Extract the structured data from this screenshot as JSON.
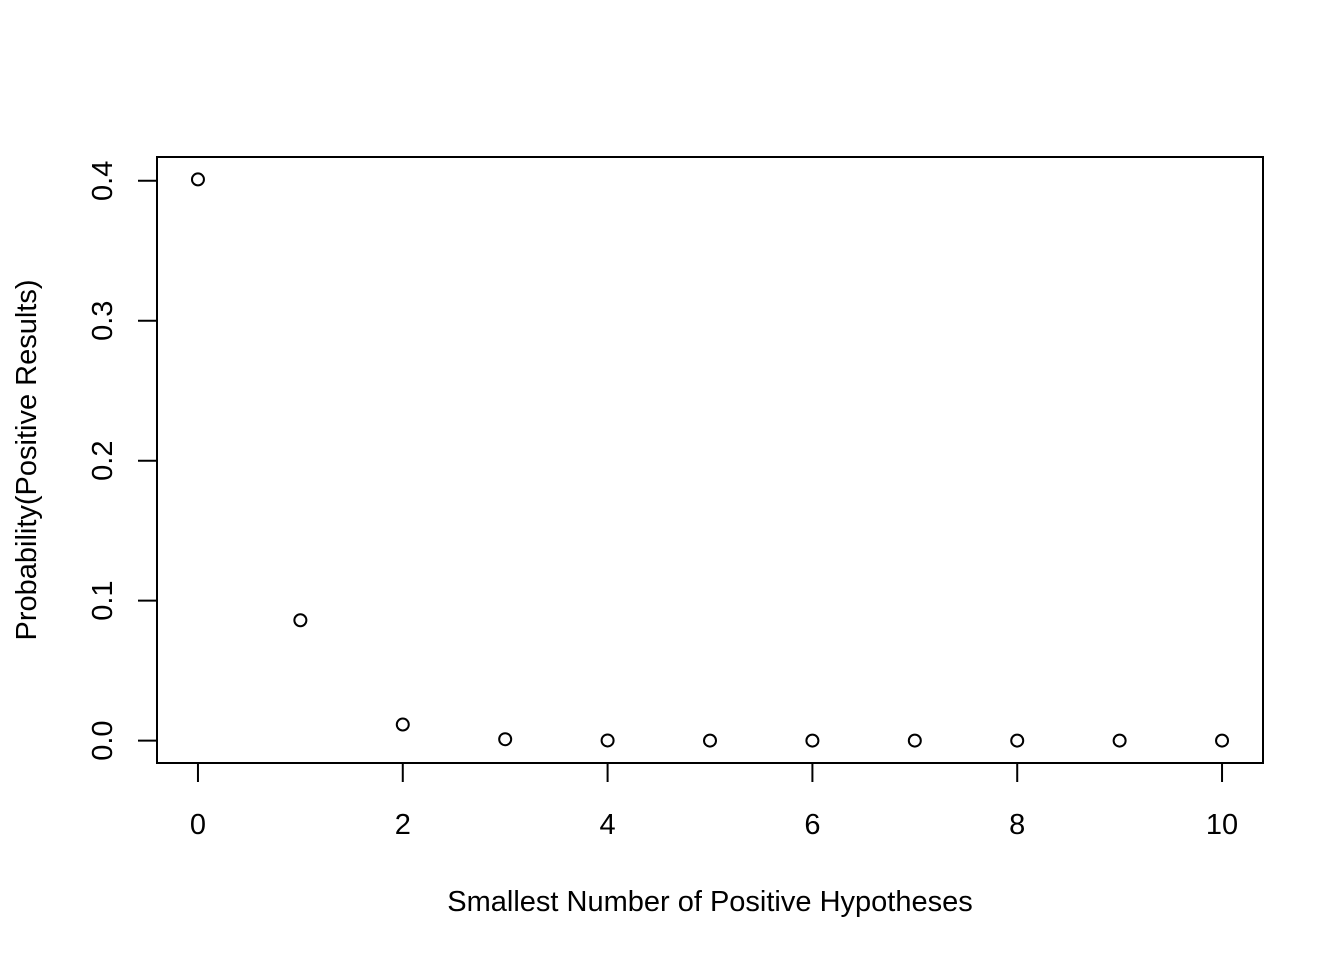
{
  "chart_data": {
    "type": "scatter",
    "title": "",
    "xlabel": "Smallest Number of Positive Hypotheses",
    "ylabel": "Probability(Positive Results)",
    "x": [
      0,
      1,
      2,
      3,
      4,
      5,
      6,
      7,
      8,
      9,
      10
    ],
    "y": [
      0.401,
      0.086,
      0.0115,
      0.001,
      0.0001,
      0.0,
      0.0,
      0.0,
      0.0,
      0.0,
      0.0
    ],
    "x_ticks": [
      0,
      2,
      4,
      6,
      8,
      10
    ],
    "x_tick_labels": [
      "0",
      "2",
      "4",
      "6",
      "8",
      "10"
    ],
    "y_ticks": [
      0.0,
      0.1,
      0.2,
      0.3,
      0.4
    ],
    "y_tick_labels": [
      "0.0",
      "0.1",
      "0.2",
      "0.3",
      "0.4"
    ],
    "xlim": [
      -0.4,
      10.4
    ],
    "ylim": [
      -0.016,
      0.417
    ],
    "marker": "open-circle",
    "grid": false,
    "legend": "none",
    "colors": {
      "points": "#000000",
      "axes": "#000000",
      "background": "#ffffff"
    }
  }
}
